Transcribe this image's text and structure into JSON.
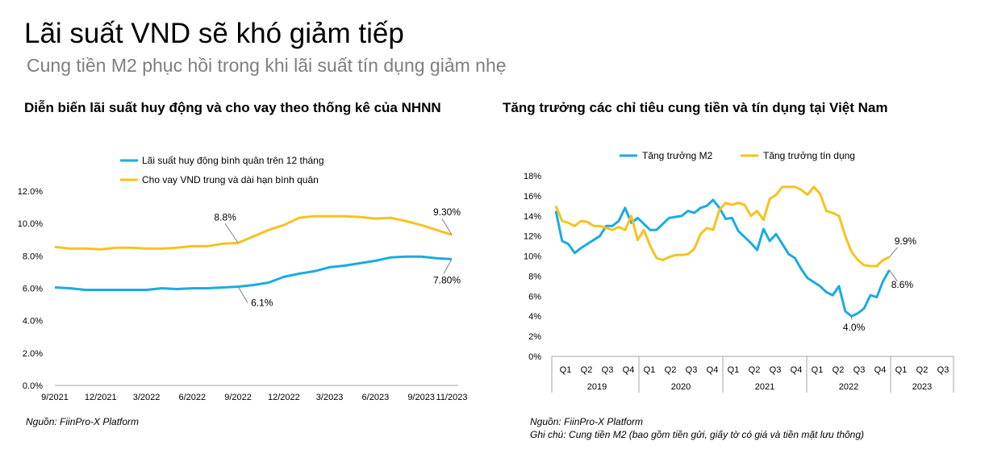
{
  "header": {
    "title": "Lãi suất VND sẽ khó giảm tiếp",
    "subtitle": "Cung tiền M2 phục hồi trong khi lãi suất tín dụng giảm nhẹ"
  },
  "colors": {
    "blue": "#1aabe2",
    "yellow": "#f7c21e",
    "axis": "#a6a6a6",
    "text": "#000000"
  },
  "charts": [
    {
      "title": "Diễn biến lãi suất huy động và cho vay theo thống kê của NHNN",
      "source": "Nguồn: FiinPro-X Platform"
    },
    {
      "title": "Tăng trưởng các chỉ tiêu cung tiền và tín dụng tại Việt Nam",
      "source": "Nguồn: FiinPro-X Platform",
      "note": "Ghi chú: Cung tiền M2 (bao gồm tiền gửi, giấy tờ có giá và tiền mặt lưu thông)"
    }
  ],
  "chart_data": [
    {
      "type": "line",
      "title": "Diễn biến lãi suất huy động và cho vay theo thống kê của NHNN",
      "x": [
        "9/2021",
        "10/2021",
        "11/2021",
        "12/2021",
        "1/2022",
        "2/2022",
        "3/2022",
        "4/2022",
        "5/2022",
        "6/2022",
        "7/2022",
        "8/2022",
        "9/2022",
        "10/2022",
        "11/2022",
        "12/2022",
        "1/2023",
        "2/2023",
        "3/2023",
        "4/2023",
        "5/2023",
        "6/2023",
        "7/2023",
        "8/2023",
        "9/2023",
        "10/2023",
        "11/2023"
      ],
      "x_tick_labels": [
        "9/2021",
        "12/2021",
        "3/2022",
        "6/2022",
        "9/2022",
        "12/2022",
        "3/2023",
        "6/2023",
        "9/2023",
        "11/2023"
      ],
      "y_tick_labels": [
        "0.0%",
        "2.0%",
        "4.0%",
        "6.0%",
        "8.0%",
        "10.0%",
        "12.0%"
      ],
      "ylim": [
        0,
        12
      ],
      "legend_position": "top",
      "series": [
        {
          "name": "Lãi suất huy động bình quân trên 12 tháng",
          "color": "#1aabe2",
          "values": [
            6.05,
            6.0,
            5.9,
            5.9,
            5.9,
            5.9,
            5.9,
            6.0,
            5.95,
            6.0,
            6.0,
            6.05,
            6.1,
            6.2,
            6.35,
            6.7,
            6.9,
            7.05,
            7.3,
            7.4,
            7.55,
            7.7,
            7.9,
            7.95,
            7.95,
            7.85,
            7.8
          ]
        },
        {
          "name": "Cho vay VND trung và dài hạn bình quân",
          "color": "#f7c21e",
          "values": [
            8.55,
            8.45,
            8.45,
            8.4,
            8.5,
            8.5,
            8.45,
            8.45,
            8.5,
            8.6,
            8.6,
            8.75,
            8.8,
            9.2,
            9.6,
            9.9,
            10.35,
            10.45,
            10.45,
            10.45,
            10.4,
            10.3,
            10.35,
            10.15,
            9.9,
            9.6,
            9.3
          ]
        }
      ],
      "annotations": [
        {
          "series": 1,
          "index": 12,
          "text": "8.8%"
        },
        {
          "series": 0,
          "index": 12,
          "text": "6.1%"
        },
        {
          "series": 1,
          "index": 26,
          "text": "9.30%"
        },
        {
          "series": 0,
          "index": 26,
          "text": "7.80%"
        }
      ]
    },
    {
      "type": "line",
      "title": "Tăng trưởng các chỉ tiêu cung tiền và tín dụng tại Việt Nam",
      "x_quarter_labels": [
        "Q1",
        "Q2",
        "Q3",
        "Q4",
        "Q1",
        "Q2",
        "Q3",
        "Q4",
        "Q1",
        "Q2",
        "Q3",
        "Q4",
        "Q1",
        "Q2",
        "Q3",
        "Q4",
        "Q1",
        "Q2",
        "Q3"
      ],
      "x_year_labels": [
        "2019",
        "2020",
        "2021",
        "2022",
        "2023"
      ],
      "y_tick_labels": [
        "0%",
        "2%",
        "4%",
        "6%",
        "8%",
        "10%",
        "12%",
        "14%",
        "16%",
        "18%"
      ],
      "ylim": [
        0,
        18
      ],
      "legend_position": "top",
      "series": [
        {
          "name": "Tăng trưởng M2",
          "color": "#1aabe2",
          "values": [
            14.5,
            11.5,
            11.2,
            10.3,
            10.8,
            11.2,
            11.6,
            12.0,
            13.0,
            13.0,
            13.5,
            14.8,
            13.3,
            13.8,
            13.2,
            12.6,
            12.6,
            13.2,
            13.8,
            13.9,
            14.0,
            14.5,
            14.3,
            14.8,
            15.0,
            15.6,
            14.8,
            13.7,
            13.8,
            12.5,
            11.9,
            11.3,
            10.6,
            12.7,
            11.5,
            12.2,
            11.2,
            10.2,
            9.8,
            8.7,
            7.8,
            7.4,
            7.0,
            6.4,
            6.1,
            7.0,
            4.5,
            4.0,
            4.3,
            4.8,
            6.1,
            5.9,
            7.5,
            8.6
          ],
          "x": [
            0,
            0.3,
            0.6,
            0.9,
            1.2,
            1.5,
            1.8,
            2.1,
            2.4,
            2.7,
            3.0,
            3.3,
            3.6,
            3.9,
            4.2,
            4.5,
            4.8,
            5.1,
            5.4,
            5.7,
            6.0,
            6.3,
            6.6,
            6.9,
            7.2,
            7.5,
            7.8,
            8.1,
            8.4,
            8.7,
            9.0,
            9.3,
            9.6,
            9.9,
            10.2,
            10.5,
            10.8,
            11.1,
            11.4,
            11.7,
            12.0,
            12.3,
            12.6,
            12.9,
            13.2,
            13.5,
            13.8,
            14.1,
            14.4,
            14.7,
            15.0,
            15.3,
            15.6,
            15.9
          ]
        },
        {
          "name": "Tăng trưởng tín dụng",
          "color": "#f7c21e",
          "values": [
            15.0,
            13.5,
            13.3,
            13.0,
            13.5,
            13.4,
            13.0,
            13.0,
            12.8,
            12.6,
            12.9,
            12.6,
            14.0,
            11.6,
            12.6,
            11.0,
            9.8,
            9.6,
            9.9,
            10.1,
            10.1,
            10.2,
            10.7,
            12.2,
            12.8,
            12.6,
            14.6,
            15.3,
            15.1,
            15.3,
            15.1,
            14.0,
            14.5,
            13.6,
            15.7,
            16.1,
            16.9,
            16.9,
            16.9,
            16.6,
            16.1,
            16.9,
            16.2,
            14.5,
            14.3,
            14.0,
            12.0,
            10.4,
            9.6,
            9.1,
            9.0,
            9.0,
            9.6,
            9.9
          ],
          "x": [
            0,
            0.3,
            0.6,
            0.9,
            1.2,
            1.5,
            1.8,
            2.1,
            2.4,
            2.7,
            3.0,
            3.3,
            3.6,
            3.9,
            4.2,
            4.5,
            4.8,
            5.1,
            5.4,
            5.7,
            6.0,
            6.3,
            6.6,
            6.9,
            7.2,
            7.5,
            7.8,
            8.1,
            8.4,
            8.7,
            9.0,
            9.3,
            9.6,
            9.9,
            10.2,
            10.5,
            10.8,
            11.1,
            11.4,
            11.7,
            12.0,
            12.3,
            12.6,
            12.9,
            13.2,
            13.5,
            13.8,
            14.1,
            14.4,
            14.7,
            15.0,
            15.3,
            15.6,
            15.9
          ]
        }
      ],
      "annotations": [
        {
          "series": 1,
          "text": "9.9%"
        },
        {
          "series": 0,
          "text": "8.6%"
        },
        {
          "series": 0,
          "text": "4.0%"
        }
      ]
    }
  ]
}
